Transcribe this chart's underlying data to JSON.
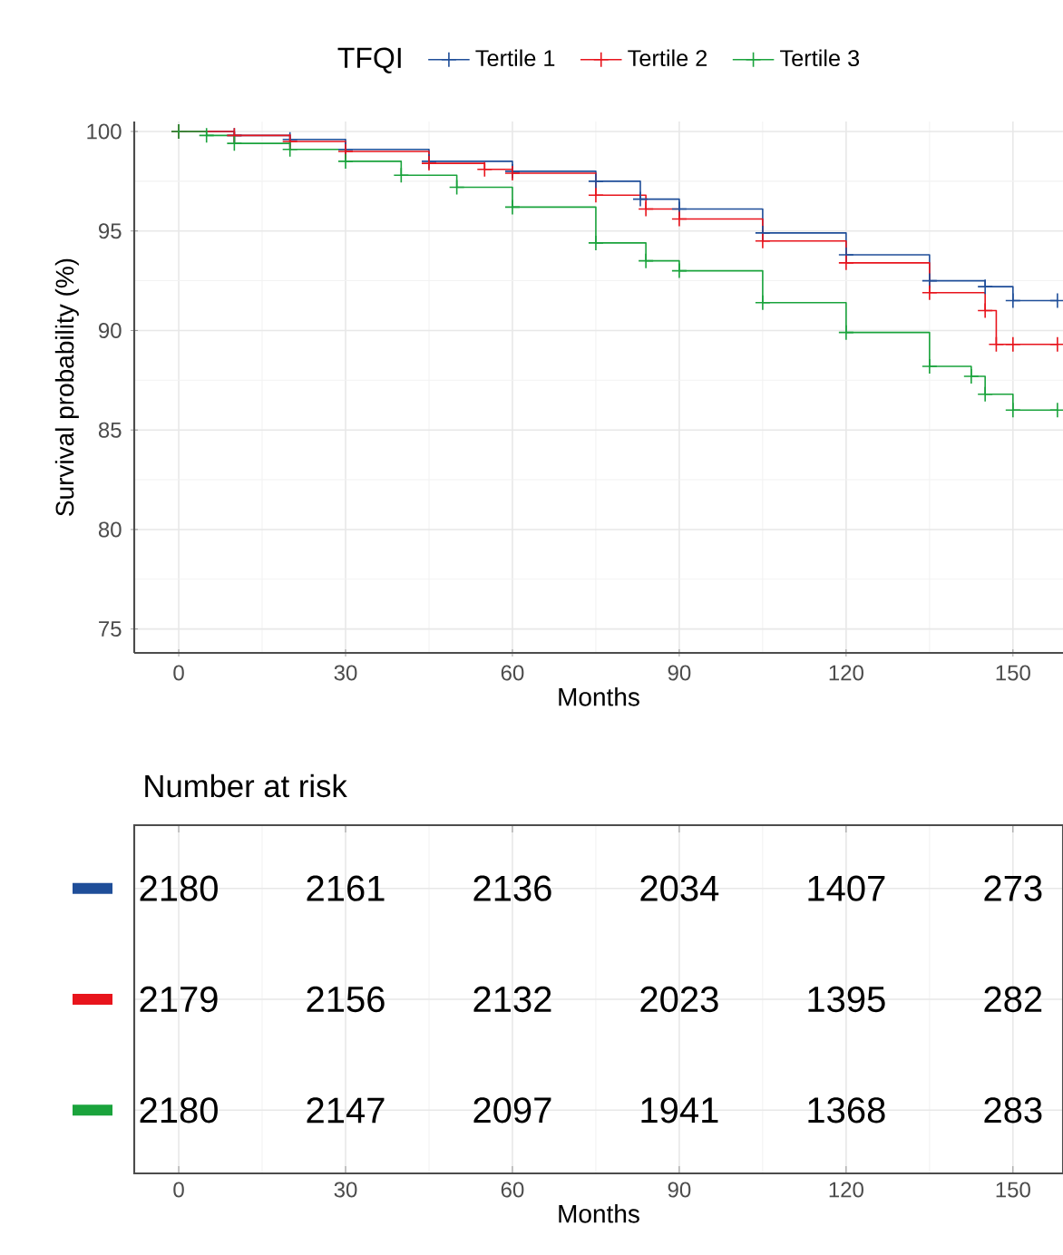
{
  "chart_data": [
    {
      "type": "step",
      "xlabel": "Months",
      "ylabel": "Survival probability (%)",
      "legend_title": "TFQI",
      "legend": "top",
      "marker": "cross",
      "grid": true,
      "xlim": [
        -8,
        159
      ],
      "ylim": [
        73.8,
        100.5
      ],
      "xticks": [
        0,
        30,
        60,
        90,
        120,
        150
      ],
      "yticks": [
        75,
        80,
        85,
        90,
        95,
        100
      ],
      "series": [
        {
          "name": "Tertile 1",
          "color": "#1f4e99",
          "x": [
            0,
            10,
            20,
            30,
            45,
            60,
            75,
            83,
            90,
            105,
            120,
            135,
            145,
            150,
            158
          ],
          "values": [
            100,
            99.8,
            99.6,
            99.1,
            98.5,
            98.0,
            97.5,
            96.6,
            96.1,
            94.9,
            93.8,
            92.5,
            92.2,
            91.5,
            91.5
          ]
        },
        {
          "name": "Tertile 2",
          "color": "#e8141c",
          "x": [
            0,
            10,
            20,
            30,
            45,
            55,
            60,
            75,
            84,
            90,
            105,
            120,
            135,
            145,
            147,
            150,
            158
          ],
          "values": [
            100,
            99.8,
            99.5,
            99.0,
            98.4,
            98.1,
            97.9,
            96.8,
            96.1,
            95.6,
            94.5,
            93.4,
            91.9,
            91.0,
            89.3,
            89.3,
            89.3
          ]
        },
        {
          "name": "Tertile 3",
          "color": "#1aa33c",
          "x": [
            0,
            5,
            10,
            20,
            30,
            40,
            50,
            60,
            75,
            84,
            90,
            105,
            120,
            135,
            142.5,
            145,
            150,
            158
          ],
          "values": [
            100,
            99.8,
            99.4,
            99.1,
            98.5,
            97.8,
            97.2,
            96.2,
            94.4,
            93.5,
            93.0,
            91.4,
            89.9,
            88.2,
            87.7,
            86.8,
            86.0,
            86.0
          ]
        }
      ]
    },
    {
      "type": "heatmap",
      "title": "Number at risk",
      "xlabel": "Months",
      "xlim": [
        -8,
        159
      ],
      "xticks": [
        0,
        30,
        60,
        90,
        120,
        150
      ],
      "x": [
        0,
        30,
        60,
        90,
        120,
        150
      ],
      "grid": true,
      "tick_labels": "x",
      "y_categories": [
        null,
        null,
        null
      ],
      "colors": [
        "#1f4e99",
        "#e8141c",
        "#1aa33c"
      ],
      "cells": [
        [
          2180,
          2161,
          2136,
          2034,
          1407,
          273
        ],
        [
          2179,
          2156,
          2132,
          2023,
          1395,
          282
        ],
        [
          2180,
          2147,
          2097,
          1941,
          1368,
          283
        ]
      ],
      "data_labels": true
    }
  ]
}
